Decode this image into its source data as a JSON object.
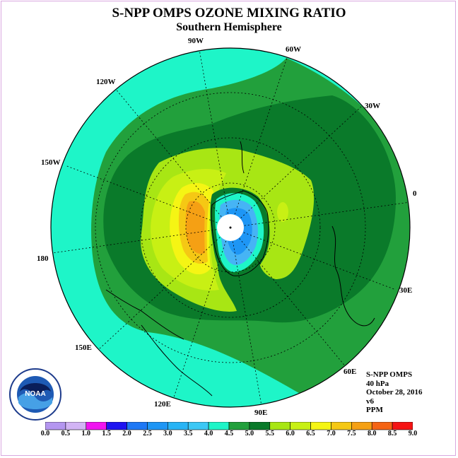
{
  "title": "S-NPP OMPS OZONE MIXING RATIO",
  "subtitle": "Southern Hemisphere",
  "longitude_labels": [
    "90W",
    "60W",
    "30W",
    "0",
    "30E",
    "60E",
    "90E",
    "120E",
    "150E",
    "180",
    "150W",
    "120W"
  ],
  "info": {
    "instrument": "S-NPP OMPS",
    "level": "40 hPa",
    "date": "October 28, 2016",
    "version": "v6",
    "units": "PPM"
  },
  "logo_text": "NOAA",
  "colors": {
    "cyan": "#1ef5c8",
    "green": "#22a03c",
    "dark_green": "#0a7a2a",
    "lime": "#a8e614",
    "yellow": "#f5f514",
    "orange": "#f5a014",
    "blue": "#1e78f5",
    "light_blue": "#46b4f5",
    "sky": "#3cc8f5",
    "frame": "#d9a8e0"
  },
  "chart_data": {
    "type": "heatmap",
    "projection": "south-polar-stereographic",
    "units": "PPM",
    "colorbar_ticks": [
      "0.0",
      "0.5",
      "1.0",
      "1.5",
      "2.0",
      "2.5",
      "3.0",
      "3.5",
      "4.0",
      "4.5",
      "5.0",
      "5.5",
      "6.0",
      "6.5",
      "7.0",
      "7.5",
      "8.0",
      "8.5",
      "9.0"
    ],
    "colorbar_colors": [
      "#b496f0",
      "#d2b4f5",
      "#f014f0",
      "#1e14f0",
      "#1e78f5",
      "#1e96f5",
      "#28b4f5",
      "#3cc8f5",
      "#1ef5c8",
      "#22a03c",
      "#0a7a2a",
      "#a8e614",
      "#c8f014",
      "#f5f514",
      "#f5c814",
      "#f5a014",
      "#f56414",
      "#f51414",
      "#8c5a3c"
    ]
  }
}
